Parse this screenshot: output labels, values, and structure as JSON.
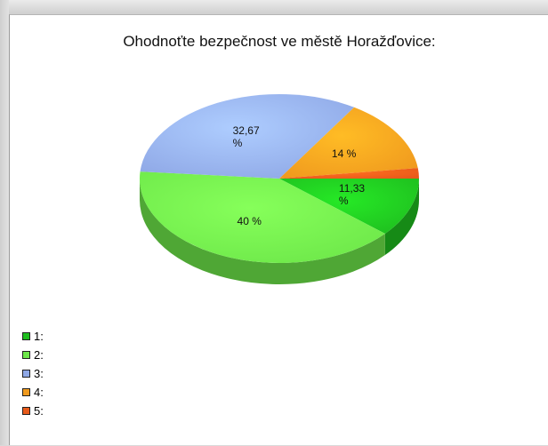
{
  "chart_data": {
    "type": "pie",
    "title": "Ohodnoťte bezpečnost ve městě Horažďovice:",
    "slices": [
      {
        "name": "1:",
        "value": 11.33,
        "label_lines": [
          "11,33",
          "%"
        ],
        "color": "#1fbf1f"
      },
      {
        "name": "2:",
        "value": 40,
        "label_lines": [
          "40 %"
        ],
        "color": "#6ee84a"
      },
      {
        "name": "3:",
        "value": 32.67,
        "label_lines": [
          "32,67",
          "%"
        ],
        "color": "#8fa8e6"
      },
      {
        "name": "4:",
        "value": 14,
        "label_lines": [
          "14 %"
        ],
        "color": "#f09a1e"
      },
      {
        "name": "5:",
        "value": 2,
        "label_lines": [],
        "color": "#e85a1a"
      }
    ],
    "legend_position": "bottom-left",
    "style": "3d-pie"
  }
}
